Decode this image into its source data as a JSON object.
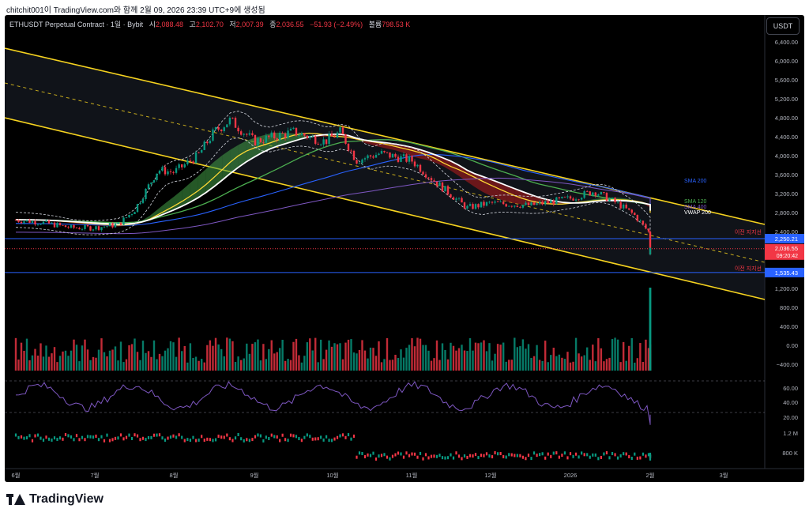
{
  "header": {
    "text": "chitchit001이 TradingView.com와 함께 2월 09, 2026 23:39 UTC+9에 생성됨"
  },
  "legend": {
    "symbol": "ETHUSDT Perpetual Contract · 1일 · Bybit",
    "open_label": "시",
    "open": "2,088.48",
    "high_label": "고",
    "high": "2,102.70",
    "low_label": "저",
    "low": "2,007.39",
    "close_label": "종",
    "close": "2,036.55",
    "change": "−51.93 (−2.49%)",
    "volume_label": "볼륨",
    "volume": "798.53 K"
  },
  "quote_button": "USDT",
  "price_axis": {
    "ticks": [
      "6,800.00",
      "6,400.00",
      "6,000.00",
      "5,600.00",
      "5,200.00",
      "4,800.00",
      "4,400.00",
      "4,000.00",
      "3,600.00",
      "3,200.00",
      "2,800.00",
      "2,400.00",
      "1,600.00",
      "1,200.00",
      "800.00",
      "400.00",
      "0.00",
      "−400.00"
    ]
  },
  "tags": {
    "resistance": "2,250.21",
    "last_price": "2,036.55",
    "countdown": "09:20:42",
    "support": "1,535.43",
    "resistance_label": "이전 지지선",
    "support_label": "이전 지지선"
  },
  "indicator_labels": {
    "sma200": "SMA 200",
    "sma120": "SMA 120",
    "sma400": "SMA 400",
    "vwap": "VWAP 200"
  },
  "rsi_axis": [
    "60.00",
    "40.00",
    "20.00"
  ],
  "lower_axis": [
    "1.2 M",
    "800 K"
  ],
  "time_axis": [
    "6월",
    "7월",
    "8월",
    "9월",
    "10월",
    "11월",
    "12월",
    "2026",
    "2월",
    "3월"
  ],
  "footer": {
    "logo": "TradingView"
  },
  "colors": {
    "up": "#089981",
    "down": "#f23645",
    "channel": "#f5d21f",
    "sma200": "#2962ff",
    "vwap": "#ffffff",
    "cloud_green": "#43a047",
    "cloud_red": "#b71c1c",
    "rsi": "#7e57c2"
  },
  "chart_data": {
    "type": "line",
    "title": "ETHUSDT Perpetual Contract · 1일 · Bybit",
    "x": [
      "6월",
      "7월",
      "8월",
      "9월",
      "10월",
      "11월",
      "12월",
      "2026",
      "2월"
    ],
    "series": [
      {
        "values": [
          2600,
          2450,
          3700,
          4450,
          4300,
          3900,
          3000,
          3000,
          2036
        ]
      },
      {
        "name": "SMA 200",
        "values": [
          2500,
          2500,
          2550,
          2700,
          2950,
          3250,
          3450,
          3600,
          3620
        ]
      },
      {
        "name": "SMA 120",
        "values": [
          2300,
          2350,
          2900,
          3900,
          4250,
          4100,
          3700,
          3350,
          3050
        ]
      }
    ],
    "ylim": [
      -400,
      6800
    ],
    "levels": {
      "resistance": 2250.21,
      "support": 1535.43,
      "last": 2036.55
    }
  }
}
